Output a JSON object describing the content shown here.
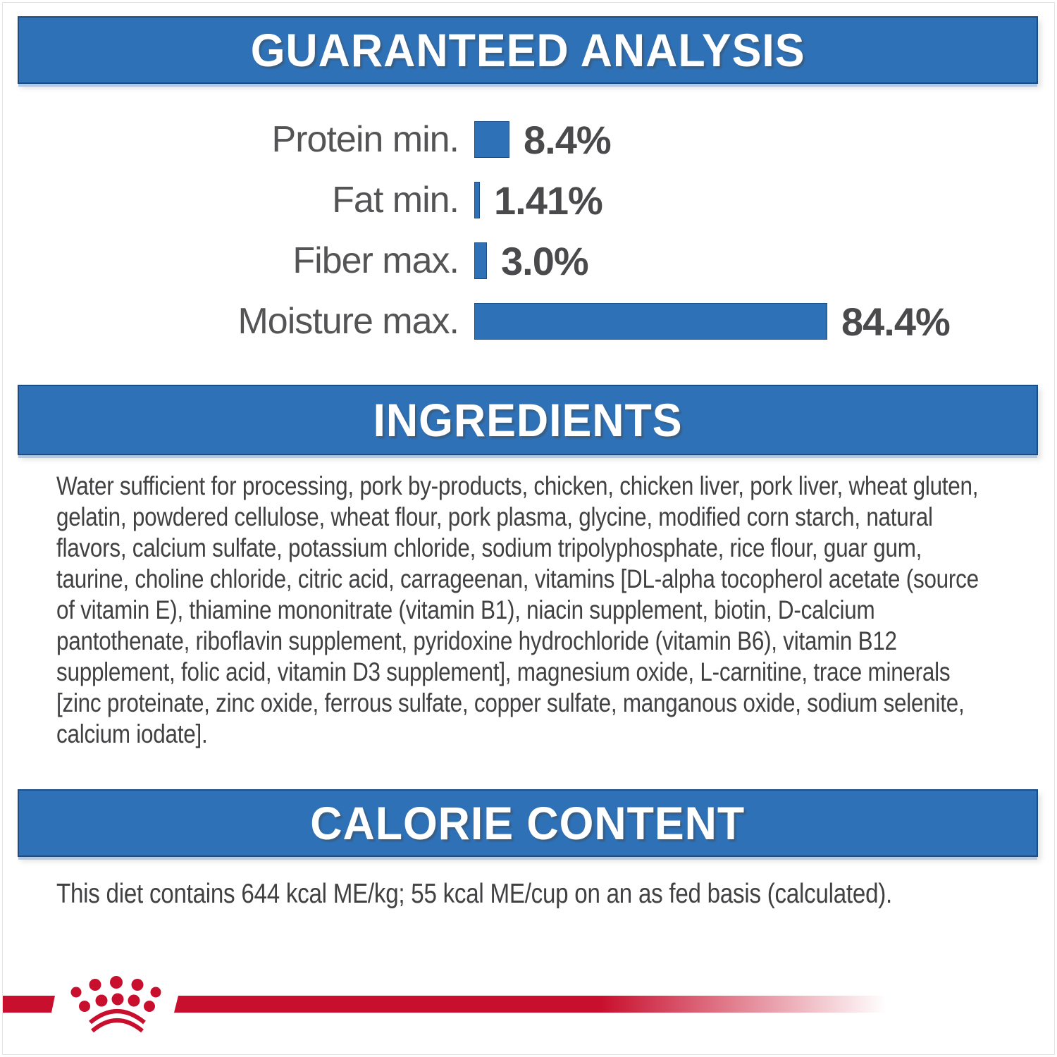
{
  "page": {
    "background": "#ffffff",
    "accent_blue": "#2e71b6",
    "accent_red": "#c8102e",
    "text_gray": "#414143"
  },
  "guaranteed_analysis": {
    "title": "GUARANTEED ANALYSIS",
    "rows": [
      {
        "label": "Protein min.",
        "value": "8.4%",
        "pct": 8.4
      },
      {
        "label": "Fat min.",
        "value": "1.41%",
        "pct": 1.41
      },
      {
        "label": "Fiber max.",
        "value": "3.0%",
        "pct": 3.0
      },
      {
        "label": "Moisture max.",
        "value": "84.4%",
        "pct": 84.4
      }
    ]
  },
  "ingredients": {
    "title": "INGREDIENTS",
    "text": "Water sufficient for processing, pork by-products, chicken, chicken liver, pork liver, wheat gluten, gelatin, powdered cellulose, wheat flour, pork plasma, glycine, modified corn starch, natural flavors, calcium sulfate, potassium chloride, sodium tripolyphosphate, rice flour, guar gum, taurine, choline chloride, citric acid, carrageenan, vitamins [DL-alpha tocopherol acetate (source of vitamin E), thiamine mononitrate (vitamin B1), niacin supplement, biotin, D-calcium pantothenate, riboflavin supplement, pyridoxine hydrochloride (vitamin B6), vitamin B12 supplement, folic acid, vitamin D3 supplement], magnesium oxide, L-carnitine, trace minerals [zinc proteinate, zinc oxide, ferrous sulfate, copper sulfate, manganous oxide, sodium selenite, calcium iodate]."
  },
  "calorie_content": {
    "title": "CALORIE CONTENT",
    "text": "This diet contains 644 kcal ME/kg; 55 kcal ME/cup on an as fed basis (calculated)."
  },
  "footer": {
    "logo_icon": "royal-canin-crown-paw-logo"
  },
  "chart_data": {
    "type": "bar",
    "orientation": "horizontal",
    "title": "GUARANTEED ANALYSIS",
    "categories": [
      "Protein min.",
      "Fat min.",
      "Fiber max.",
      "Moisture max."
    ],
    "values": [
      8.4,
      1.41,
      3.0,
      84.4
    ],
    "value_labels": [
      "8.4%",
      "1.41%",
      "3.0%",
      "84.4%"
    ],
    "unit": "%",
    "xlim": [
      0,
      84.4
    ],
    "bar_color": "#2e71b6",
    "grid": false,
    "legend": false
  }
}
